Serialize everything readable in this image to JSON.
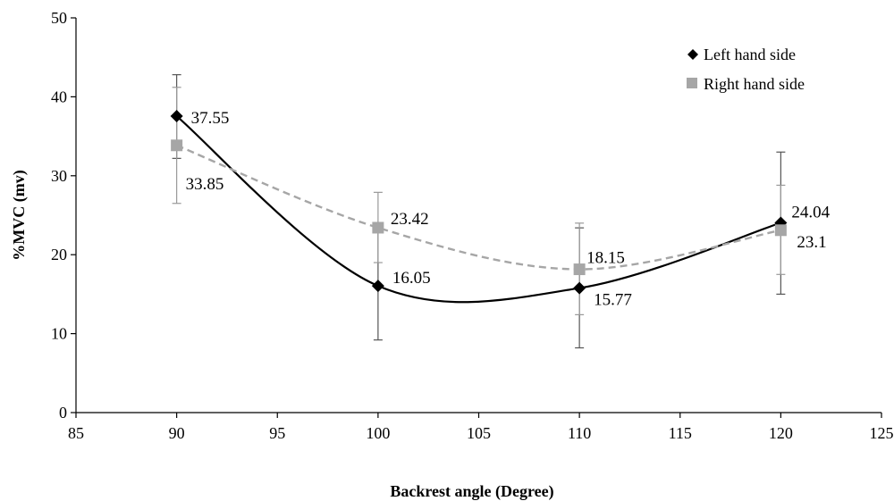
{
  "chart_data": {
    "type": "line",
    "title": "",
    "xlabel": "Backrest angle (Degree)",
    "ylabel": "%MVC (mv)",
    "xlim": [
      85,
      125
    ],
    "ylim": [
      0,
      50
    ],
    "xticks": [
      85,
      90,
      95,
      100,
      105,
      110,
      115,
      120,
      125
    ],
    "yticks": [
      0,
      10,
      20,
      30,
      40,
      50
    ],
    "grid": false,
    "legend_position": "top-right",
    "series": [
      {
        "name": "Left hand side",
        "marker": "diamond",
        "color": "#000000",
        "line_style": "solid-smooth",
        "x": [
          90,
          100,
          110,
          120
        ],
        "y": [
          37.55,
          16.05,
          15.77,
          24.04
        ],
        "labels": [
          "37.55",
          "16.05",
          "15.77",
          "24.04"
        ],
        "error_low": [
          32.2,
          9.2,
          8.2,
          15.0
        ],
        "error_high": [
          42.8,
          23.0,
          23.4,
          33.0
        ]
      },
      {
        "name": "Right hand side",
        "marker": "square",
        "color": "#a6a6a6",
        "line_style": "dashed-smooth",
        "x": [
          90,
          100,
          110,
          120
        ],
        "y": [
          33.85,
          23.42,
          18.15,
          23.1
        ],
        "labels": [
          "33.85",
          "23.42",
          "18.15",
          "23.1"
        ],
        "error_low": [
          26.5,
          19.0,
          12.4,
          17.5
        ],
        "error_high": [
          41.2,
          27.9,
          24.0,
          28.8
        ]
      }
    ]
  }
}
